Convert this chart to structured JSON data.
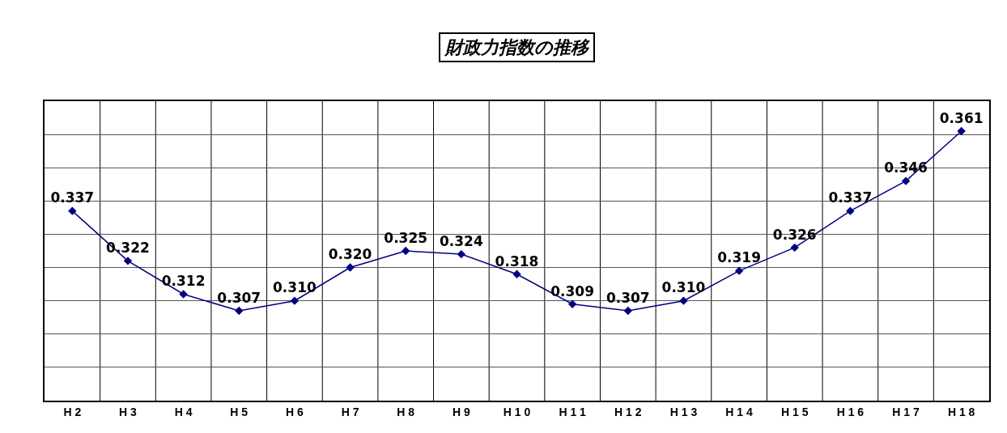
{
  "chart_data": {
    "type": "line",
    "title": "財政力指数の推移",
    "categories": [
      "H 2",
      "H 3",
      "H 4",
      "H 5",
      "H 6",
      "H 7",
      "H 8",
      "H 9",
      "H 1 0",
      "H 1 1",
      "H 1 2",
      "H 1 3",
      "H 1 4",
      "H 1 5",
      "H 1 6",
      "H 1 7",
      "H 1 8"
    ],
    "series": [
      {
        "color": "#000080",
        "values": [
          0.337,
          0.322,
          0.312,
          0.307,
          0.31,
          0.32,
          0.325,
          0.324,
          0.318,
          0.309,
          0.307,
          0.31,
          0.319,
          0.326,
          0.337,
          0.346,
          0.361
        ],
        "value_labels": [
          "0.337",
          "0.322",
          "0.312",
          "0.307",
          "0.310",
          "0.320",
          "0.325",
          "0.324",
          "0.318",
          "0.309",
          "0.307",
          "0.310",
          "0.319",
          "0.326",
          "0.337",
          "0.346",
          "0.361"
        ]
      }
    ],
    "ylim": [
      0.28,
      0.37
    ],
    "yticks": [
      {
        "value": 0.28,
        "label": null
      },
      {
        "value": 0.29,
        "label": null
      },
      {
        "value": 0.3,
        "label": null
      },
      {
        "value": 0.31,
        "label": null
      },
      {
        "value": 0.32,
        "label": null
      },
      {
        "value": 0.33,
        "label": null
      },
      {
        "value": 0.34,
        "label": null
      },
      {
        "value": 0.35,
        "label": null
      },
      {
        "value": 0.36,
        "label": null
      },
      {
        "value": 0.37,
        "label": null
      }
    ],
    "tick_labels": "x",
    "grid": true,
    "marker": "diamond",
    "line_style": "solid"
  }
}
